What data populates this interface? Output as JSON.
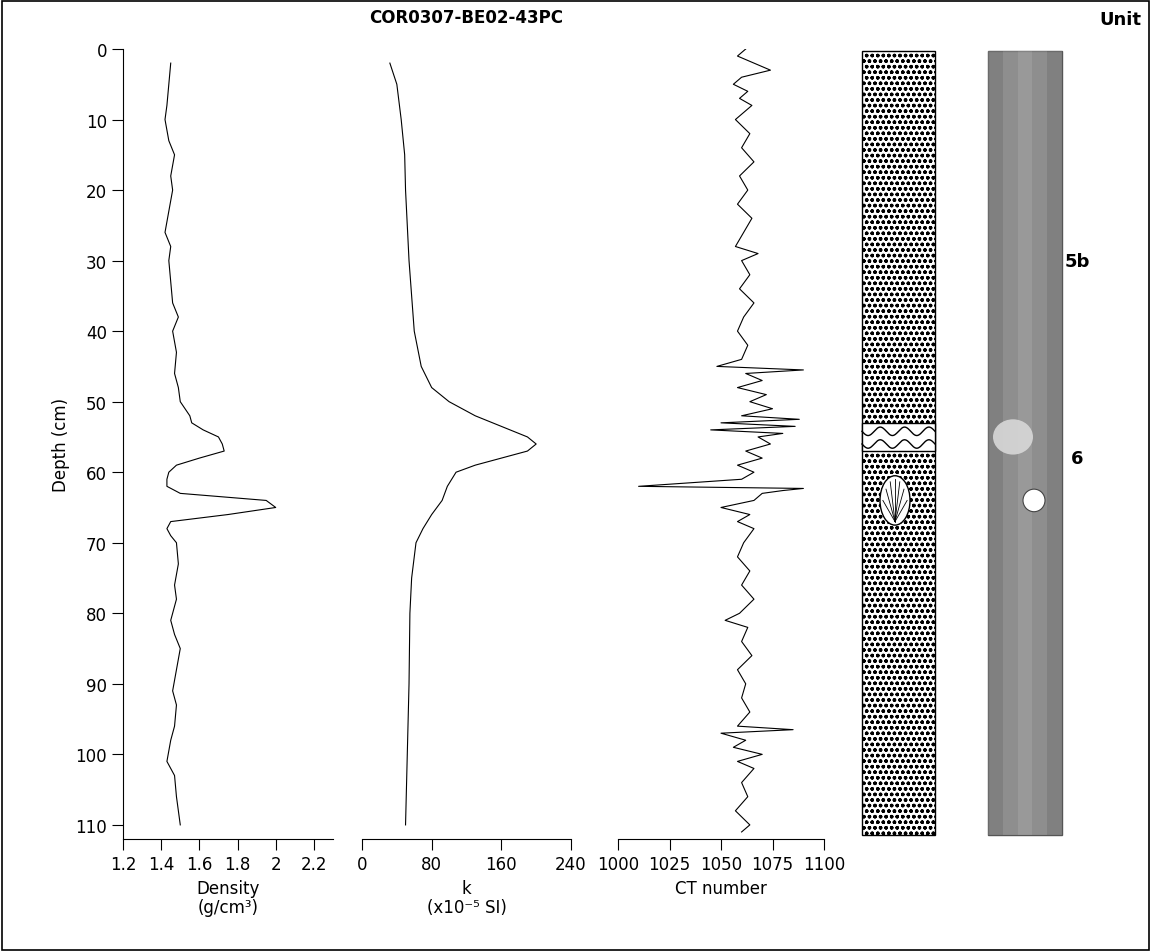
{
  "title": "COR0307-BE02-43PC",
  "chart_data": [
    {
      "type": "line",
      "x_label": "Density\n(g/cm³)",
      "y_label": "Depth (cm)",
      "color": "#000000",
      "x": [
        1.45,
        1.44,
        1.43,
        1.42,
        1.44,
        1.47,
        1.45,
        1.46,
        1.44,
        1.42,
        1.45,
        1.44,
        1.45,
        1.46,
        1.49,
        1.46,
        1.48,
        1.47,
        1.49,
        1.5,
        1.55,
        1.56,
        1.62,
        1.7,
        1.72,
        1.73,
        1.6,
        1.48,
        1.44,
        1.43,
        1.43,
        1.5,
        1.95,
        2.0,
        1.75,
        1.45,
        1.43,
        1.45,
        1.48,
        1.49,
        1.47,
        1.48,
        1.45,
        1.47,
        1.5,
        1.48,
        1.46,
        1.48,
        1.47,
        1.45,
        1.43,
        1.47,
        1.48,
        1.5
      ],
      "y": [
        2,
        5,
        8,
        10,
        13,
        15,
        18,
        20,
        23,
        26,
        28,
        30,
        33,
        36,
        38,
        40,
        43,
        46,
        48,
        50,
        52,
        53,
        54,
        55,
        56,
        57,
        58,
        59,
        60,
        61,
        62,
        63,
        64,
        65,
        66,
        67,
        68,
        69,
        70,
        73,
        76,
        78,
        81,
        83,
        85,
        88,
        91,
        93,
        96,
        98,
        101,
        103,
        106,
        110
      ],
      "xlim": [
        1.2,
        2.3
      ],
      "xticks": [
        1.2,
        1.4,
        1.6,
        1.8,
        2,
        2.2
      ],
      "ylim": [
        0,
        112
      ],
      "yticks": [
        0,
        10,
        20,
        30,
        40,
        50,
        60,
        70,
        80,
        90,
        100,
        110
      ]
    },
    {
      "type": "line",
      "x_label": "k\n(x10⁻⁵ SI)",
      "color": "#000000",
      "tick_labels": "x",
      "x": [
        32,
        40,
        45,
        49,
        50,
        54,
        60,
        68,
        80,
        100,
        130,
        170,
        190,
        200,
        190,
        160,
        130,
        108,
        98,
        92,
        80,
        70,
        62,
        57,
        55,
        54,
        52,
        50
      ],
      "y": [
        2,
        5,
        10,
        15,
        20,
        30,
        40,
        45,
        48,
        50,
        52,
        54,
        55,
        56,
        57,
        58,
        59,
        60,
        62,
        64,
        66,
        68,
        70,
        75,
        80,
        90,
        100,
        110
      ],
      "xlim": [
        0,
        240
      ],
      "xticks": [
        0,
        80,
        160,
        240
      ],
      "ylim": [
        0,
        112
      ]
    },
    {
      "type": "line",
      "x_label": "CT number",
      "color": "#000000",
      "tick_labels": "x",
      "x": [
        1062,
        1058,
        1066,
        1074,
        1060,
        1056,
        1063,
        1059,
        1065,
        1061,
        1057,
        1064,
        1060,
        1066,
        1059,
        1063,
        1058,
        1065,
        1061,
        1057,
        1068,
        1060,
        1064,
        1059,
        1066,
        1061,
        1058,
        1063,
        1060,
        1048,
        1090,
        1062,
        1070,
        1058,
        1072,
        1064,
        1075,
        1060,
        1088,
        1050,
        1086,
        1045,
        1080,
        1068,
        1074,
        1062,
        1070,
        1058,
        1066,
        1060,
        1010,
        1090,
        1080,
        1070,
        1066,
        1050,
        1064,
        1058,
        1066,
        1061,
        1058,
        1064,
        1060,
        1066,
        1059,
        1052,
        1063,
        1060,
        1065,
        1058,
        1062,
        1060,
        1064,
        1058,
        1085,
        1050,
        1062,
        1056,
        1070,
        1058,
        1066,
        1060,
        1063,
        1057,
        1064,
        1060
      ],
      "y": [
        0,
        1,
        2,
        3,
        4,
        5,
        6,
        7,
        8,
        9,
        10,
        12,
        14,
        16,
        18,
        20,
        22,
        24,
        26,
        28,
        29,
        30,
        32,
        34,
        36,
        38,
        40,
        42,
        44,
        45,
        45.5,
        46,
        47,
        48,
        49,
        50,
        51,
        52,
        52.5,
        53,
        53.5,
        54,
        54.5,
        55,
        56,
        57,
        58,
        59,
        60,
        61,
        62,
        62.3,
        62.6,
        63,
        64,
        65,
        66,
        67,
        68,
        70,
        72,
        74,
        76,
        78,
        80,
        81,
        82,
        84,
        86,
        88,
        90,
        92,
        94,
        96,
        96.5,
        97,
        98,
        99,
        100,
        101,
        102,
        104,
        106,
        108,
        110,
        111
      ],
      "xlim": [
        1000,
        1100
      ],
      "xticks": [
        1000,
        1025,
        1050,
        1075,
        1100
      ],
      "ylim": [
        0,
        112
      ]
    }
  ],
  "lithology": {
    "base": 111.5,
    "wavy_layer": [
      53,
      57
    ],
    "shell_depth": 64
  },
  "units": {
    "title": "Unit",
    "labels": [
      {
        "label": "5b",
        "depth": 30
      },
      {
        "label": "6",
        "depth": 58
      }
    ]
  }
}
